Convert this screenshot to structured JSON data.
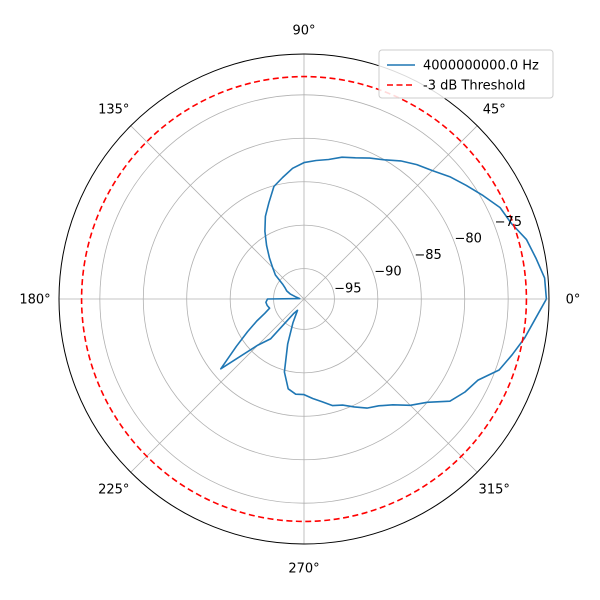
{
  "chart_data": {
    "type": "polar-line",
    "title": "",
    "angle_unit": "degrees",
    "theta_ticks": [
      0,
      45,
      90,
      135,
      180,
      225,
      270,
      315
    ],
    "theta_tick_labels": [
      "0°",
      "45°",
      "90°",
      "135°",
      "180°",
      "225°",
      "270°",
      "315°"
    ],
    "r_range": [
      -98.5,
      -70.3
    ],
    "r_ticks": [
      -95,
      -90,
      -85,
      -80,
      -75
    ],
    "r_tick_labels": [
      "−95",
      "−90",
      "−85",
      "−80",
      "−75"
    ],
    "r_label_angle": 22.5,
    "grid": true,
    "legend": {
      "placement": "top-right",
      "entries": [
        "4000000000.0 Hz",
        "-3 dB Threshold"
      ]
    },
    "series": [
      {
        "name": "4000000000.0 Hz",
        "color": "#1f77b4",
        "style": "solid",
        "theta": [
          0,
          5,
          10,
          15,
          20,
          25,
          30,
          35,
          40,
          45,
          50,
          55,
          60,
          65,
          70,
          75,
          80,
          85,
          90,
          95,
          100,
          105,
          110,
          115,
          120,
          125,
          130,
          135,
          140,
          145,
          150,
          155,
          160,
          165,
          170,
          175,
          180,
          185,
          190,
          195,
          200,
          205,
          210,
          215,
          220,
          225,
          230,
          235,
          240,
          245,
          250,
          255,
          260,
          265,
          270,
          275,
          280,
          285,
          290,
          295,
          300,
          305,
          310,
          315,
          320,
          325,
          330,
          335,
          340,
          345,
          350,
          355
        ],
        "r": [
          -70.6,
          -70.7,
          -71.4,
          -72.0,
          -73.1,
          -73.6,
          -74.7,
          -75.7,
          -76.6,
          -77.6,
          -78.3,
          -79.1,
          -80.0,
          -80.6,
          -81.2,
          -81.6,
          -82.2,
          -82.5,
          -82.8,
          -83.4,
          -84.3,
          -85.1,
          -86.7,
          -88.0,
          -89.5,
          -91.0,
          -92.3,
          -93.4,
          -94.2,
          -95.5,
          -96.0,
          -96.3,
          -96.8,
          -97.5,
          -97.8,
          -98.0,
          -94.3,
          -94.1,
          -94.2,
          -94.4,
          -93.7,
          -92.5,
          -91.0,
          -89.0,
          -86.0,
          -91.0,
          -92.5,
          -96.5,
          -97.0,
          -95.5,
          -93.0,
          -89.8,
          -88.0,
          -87.5,
          -87.5,
          -87.0,
          -86.5,
          -85.8,
          -85.5,
          -84.8,
          -84.0,
          -83.5,
          -82.6,
          -81.2,
          -80.0,
          -78.0,
          -77.1,
          -76.4,
          -74.6,
          -73.7,
          -72.7,
          -71.8
        ]
      },
      {
        "name": "-3 dB Threshold",
        "color": "#ff0000",
        "style": "dashed",
        "constant_r": -72.9
      }
    ]
  }
}
